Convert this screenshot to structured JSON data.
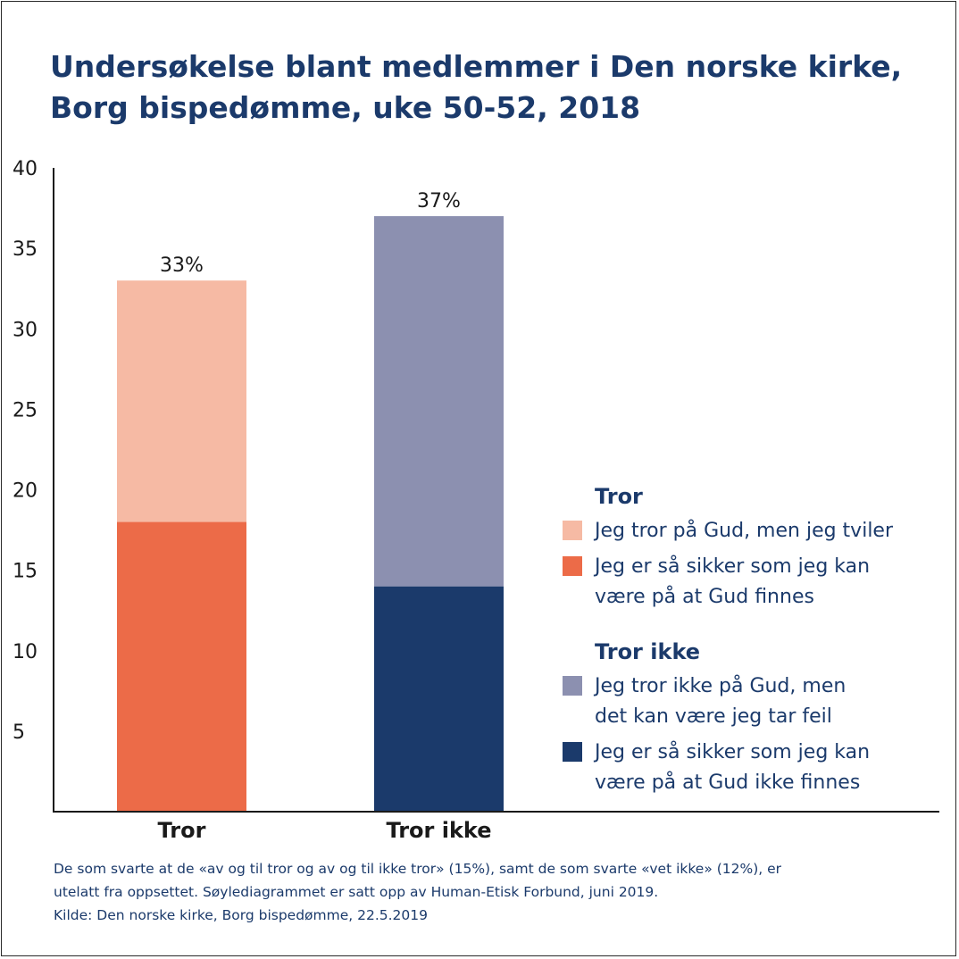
{
  "chart_data": {
    "type": "bar",
    "stacked": true,
    "title": [
      "Undersøkelse blant medlemmer i Den norske kirke,",
      "Borg bispedømme, uke 50-52, 2018"
    ],
    "xlabel": "",
    "ylabel": "",
    "ylim": [
      0,
      40
    ],
    "yticks": [
      5,
      10,
      15,
      20,
      25,
      30,
      35,
      40
    ],
    "grid": false,
    "categories": [
      "Tror",
      "Tror ikke"
    ],
    "bars": [
      {
        "category": "Tror",
        "total_label": "33%",
        "segments": [
          {
            "series": "Jeg er så sikker som jeg kan være på at Gud finnes",
            "from": 0,
            "to": 18,
            "label": "18%",
            "color": "#ec6b48"
          },
          {
            "series": "Jeg tror på Gud, men jeg tviler",
            "from": 18,
            "to": 33,
            "label": "",
            "color": "#f6baa4"
          }
        ]
      },
      {
        "category": "Tror ikke",
        "total_label": "37%",
        "segments": [
          {
            "series": "Jeg er så sikker som jeg kan være på at Gud ikke finnes",
            "from": 0,
            "to": 14,
            "label": "14%",
            "color": "#1b3a6b"
          },
          {
            "series": "Jeg tror ikke på Gud, men det kan være jeg tar feil",
            "from": 14,
            "to": 37,
            "label": "",
            "color": "#8c90b0"
          }
        ]
      }
    ],
    "legend": {
      "placement": "right",
      "groups": [
        {
          "heading": "Tror",
          "items": [
            {
              "lines": [
                "Jeg tror på Gud, men jeg tviler"
              ],
              "color": "#f6baa4"
            },
            {
              "lines": [
                "Jeg er så sikker som jeg kan",
                "være på at Gud finnes"
              ],
              "color": "#ec6b48"
            }
          ]
        },
        {
          "heading": "Tror ikke",
          "items": [
            {
              "lines": [
                "Jeg tror ikke på Gud, men",
                "det kan være jeg tar feil"
              ],
              "color": "#8c90b0"
            },
            {
              "lines": [
                "Jeg er så sikker som jeg kan",
                "være på at Gud ikke finnes"
              ],
              "color": "#1b3a6b"
            }
          ]
        }
      ]
    }
  },
  "footnote": [
    "De som svarte at de «av og til tror og av og til ikke tror» (15%), samt de som svarte «vet ikke» (12%), er",
    "utelatt fra oppsettet. Søylediagrammet er satt opp av Human-Etisk Forbund, juni 2019.",
    "Kilde: Den norske kirke, Borg bispedømme, 22.5.2019"
  ],
  "colors": {
    "title": "#1b3a6b",
    "axis": "#1a1a1a"
  }
}
